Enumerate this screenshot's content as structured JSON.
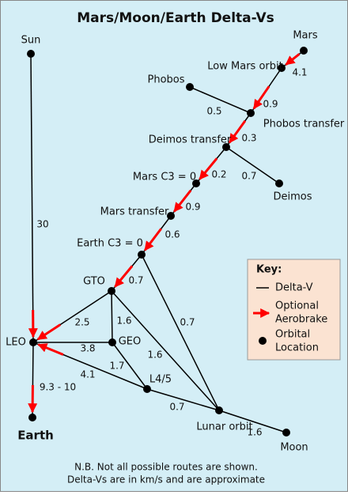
{
  "title": "Mars/Moon/Earth Delta-Vs",
  "nodes": [
    {
      "label": "Sun"
    },
    {
      "label": "Mars"
    },
    {
      "label": "Low Mars orbit"
    },
    {
      "label": "Phobos"
    },
    {
      "label": "Phobos transfer"
    },
    {
      "label": "Deimos transfer"
    },
    {
      "label": "Mars C3 = 0"
    },
    {
      "label": "Deimos"
    },
    {
      "label": "Mars transfer"
    },
    {
      "label": "Earth C3 = 0"
    },
    {
      "label": "GTO"
    },
    {
      "label": "LEO"
    },
    {
      "label": "GEO"
    },
    {
      "label": "L4/5"
    },
    {
      "label": "Lunar orbit"
    },
    {
      "label": "Moon"
    },
    {
      "label": "Earth"
    }
  ],
  "edges": [
    {
      "from": 0,
      "to": 11,
      "label": "30",
      "aerobrake": true
    },
    {
      "from": 1,
      "to": 2,
      "label": "4.1",
      "aerobrake": true
    },
    {
      "from": 2,
      "to": 4,
      "label": "0.9",
      "aerobrake": true
    },
    {
      "from": 3,
      "to": 4,
      "label": "0.5",
      "aerobrake": false
    },
    {
      "from": 4,
      "to": 5,
      "label": "0.3",
      "aerobrake": true
    },
    {
      "from": 5,
      "to": 7,
      "label": "0.7",
      "aerobrake": false
    },
    {
      "from": 5,
      "to": 6,
      "label": "0.2",
      "aerobrake": true
    },
    {
      "from": 6,
      "to": 8,
      "label": "0.9",
      "aerobrake": true
    },
    {
      "from": 8,
      "to": 9,
      "label": "0.6",
      "aerobrake": true
    },
    {
      "from": 9,
      "to": 10,
      "label": "0.7",
      "aerobrake": true
    },
    {
      "from": 9,
      "to": 14,
      "label": "0.7",
      "aerobrake": false
    },
    {
      "from": 10,
      "to": 11,
      "label": "2.5",
      "aerobrake": true
    },
    {
      "from": 10,
      "to": 12,
      "label": "1.6",
      "aerobrake": false
    },
    {
      "from": 10,
      "to": 14,
      "label": "1.6",
      "aerobrake": false
    },
    {
      "from": 11,
      "to": 12,
      "label": "3.8",
      "aerobrake": false
    },
    {
      "from": 12,
      "to": 13,
      "label": "1.7",
      "aerobrake": false
    },
    {
      "from": 13,
      "to": 11,
      "label": "4.1",
      "aerobrake": true
    },
    {
      "from": 13,
      "to": 14,
      "label": "0.7",
      "aerobrake": false
    },
    {
      "from": 14,
      "to": 15,
      "label": "1.6",
      "aerobrake": false
    },
    {
      "from": 11,
      "to": 16,
      "label": "9.3 - 10",
      "aerobrake": true
    }
  ],
  "key": {
    "title": "Key:",
    "delta_v": "Delta-V",
    "aerobrake": [
      "Optional",
      "Aerobrake"
    ],
    "location": [
      "Orbital",
      "Location"
    ]
  },
  "notes": [
    "N.B. Not all possible routes are shown.",
    "Delta-Vs are in km/s and are approximate"
  ]
}
